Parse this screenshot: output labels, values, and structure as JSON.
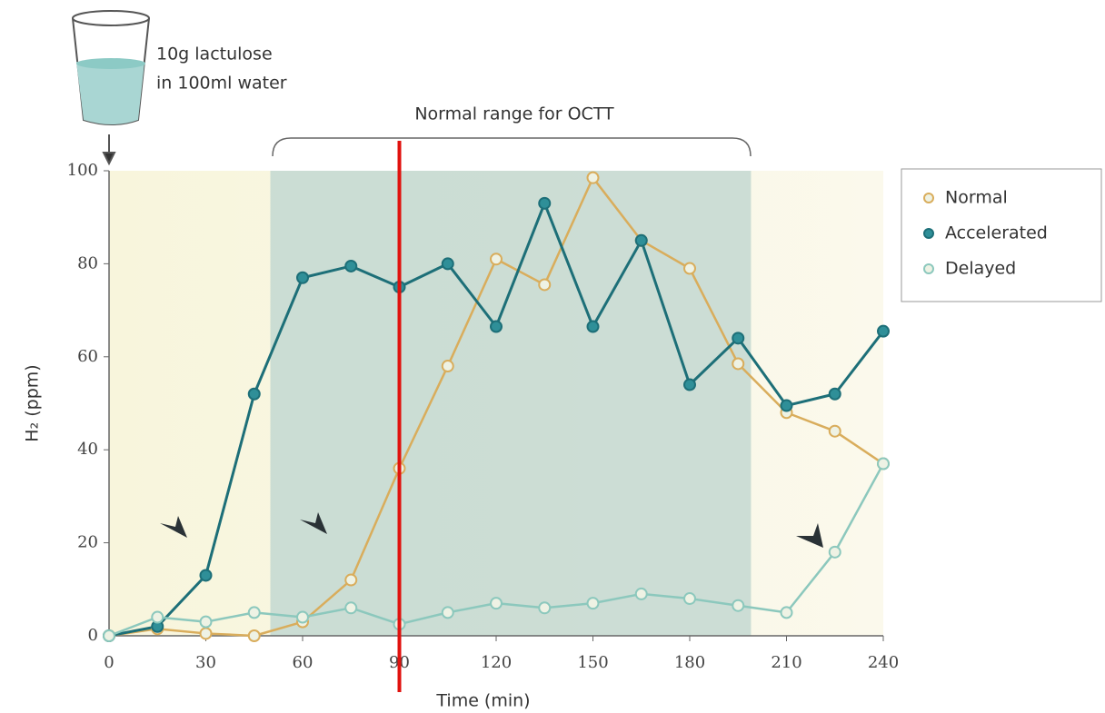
{
  "chart_data": {
    "type": "line",
    "annotations": {
      "dose_line1": "10g lactulose",
      "dose_line2": "in 100ml water",
      "range_label": "Normal range for OCTT"
    },
    "xlabel": "Time (min)",
    "ylabel": "H₂ (ppm)",
    "x": [
      0,
      15,
      30,
      45,
      60,
      75,
      90,
      105,
      120,
      135,
      150,
      165,
      180,
      195,
      210,
      225,
      240
    ],
    "series": [
      {
        "name": "Normal",
        "color": "#d9ad5c",
        "values": [
          0,
          1.5,
          0.5,
          0,
          3,
          12,
          36,
          58,
          81,
          75.5,
          98.5,
          85,
          79,
          58.5,
          48,
          44,
          37
        ]
      },
      {
        "name": "Accelerated",
        "color": "#1d6f78",
        "values": [
          0,
          2,
          13,
          52,
          77,
          79.5,
          75,
          80,
          66.5,
          93,
          66.5,
          85,
          54,
          64,
          49.5,
          52,
          65.5
        ]
      },
      {
        "name": "Delayed",
        "color": "#8cc8bd",
        "values": [
          0,
          4,
          3,
          5,
          4,
          6,
          2.5,
          5,
          7,
          6,
          7,
          9,
          8,
          6.5,
          5,
          18,
          37
        ]
      }
    ],
    "normal_range": [
      50,
      199
    ],
    "highlight_x": 90,
    "highlight_color": "#e0120e",
    "xlim": [
      0,
      240
    ],
    "xticks": [
      0,
      30,
      60,
      90,
      120,
      150,
      180,
      210,
      240
    ],
    "ylim": [
      0,
      100
    ],
    "yticks": [
      0,
      20,
      40,
      60,
      80,
      100
    ]
  }
}
